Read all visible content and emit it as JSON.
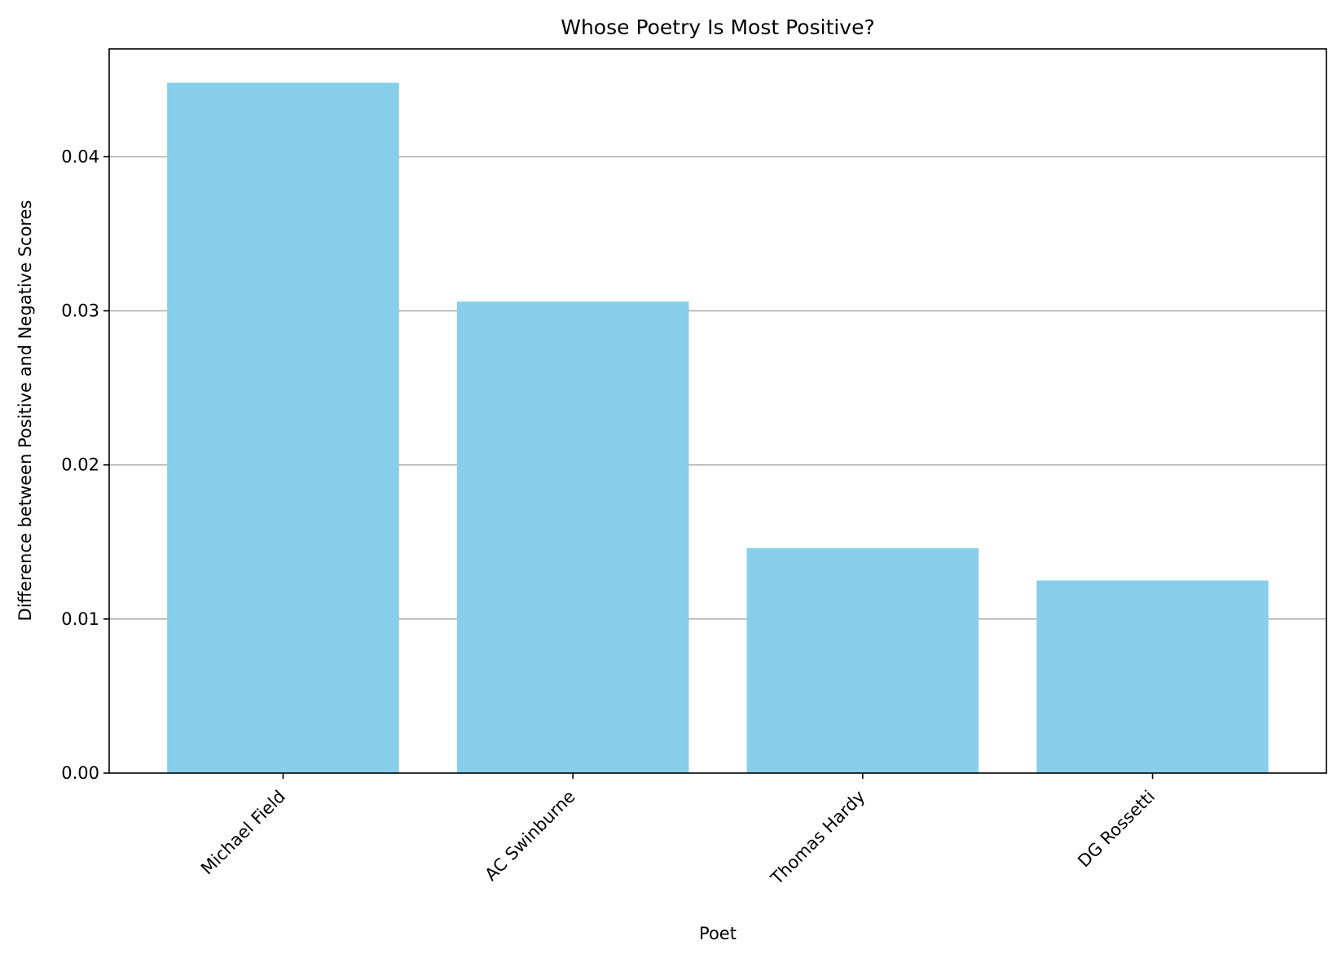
{
  "chart_data": {
    "type": "bar",
    "title": "Whose Poetry Is Most Positive?",
    "xlabel": "Poet",
    "ylabel": "Difference between Positive and Negative Scores",
    "categories": [
      "Michael Field",
      "AC Swinburne",
      "Thomas Hardy",
      "DG Rossetti"
    ],
    "values": [
      0.0448,
      0.0306,
      0.0146,
      0.0125
    ],
    "ylim": [
      0,
      0.047
    ],
    "yticks": [
      "0.00",
      "0.01",
      "0.02",
      "0.03",
      "0.04"
    ],
    "grid": "y-axis",
    "bar_color": "#87CEEB",
    "grid_color": "#b0b0b0"
  }
}
